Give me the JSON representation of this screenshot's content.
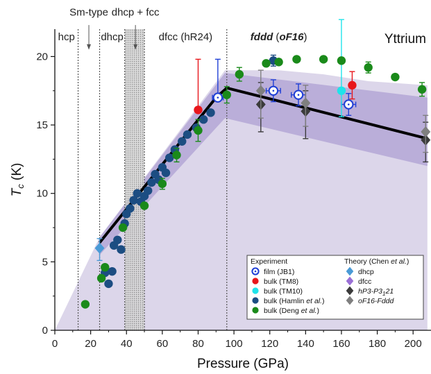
{
  "chart_data": {
    "type": "scatter",
    "title": "Yttrium",
    "xlabel": "Pressure (GPa)",
    "ylabel": "T_c (K)",
    "xlim": [
      0,
      210
    ],
    "ylim": [
      0,
      22
    ],
    "xticks": [
      0,
      20,
      40,
      60,
      80,
      100,
      120,
      140,
      160,
      180,
      200
    ],
    "yticks": [
      0,
      5,
      10,
      15,
      20
    ],
    "colors": {
      "film": "#1f3fd6",
      "tm8": "#e8161b",
      "tm10": "#1fe3ea",
      "hamlin": "#1c4d82",
      "deng": "#1a8a1a",
      "th_dhcp": "#4a9ad6",
      "th_dfcc": "#9a6fd6",
      "th_hp3": "#3b3b3b",
      "th_of16": "#7f7f7f",
      "band_outer": "#dcd6ea",
      "band_inner": "#b4a7d6",
      "shade": "#c9c9c9"
    },
    "phase_boundaries": [
      13,
      25,
      39,
      50,
      96
    ],
    "phase_labels": [
      {
        "text": "hcp",
        "x": 6.5,
        "y": 21.2
      },
      {
        "text": "dhcp",
        "x": 32,
        "y": 21.2
      },
      {
        "text": "dfcc (hR24)",
        "x": 73,
        "y": 21.2
      },
      {
        "text": "Sm-type",
        "x": 19,
        "y": 23.0
      },
      {
        "text": "dhcp + fcc",
        "x": 45,
        "y": 23.0
      }
    ],
    "phase_fddd": {
      "bold": "fddd",
      "open": "(",
      "ital": "oF16",
      "close": ")",
      "x": 125,
      "y": 21.2
    },
    "mixed_region": [
      39,
      50
    ],
    "band_outer": [
      [
        0,
        0
      ],
      [
        25,
        6.8
      ],
      [
        95,
        19.0
      ],
      [
        125,
        19.0
      ],
      [
        150,
        18.7
      ],
      [
        175,
        18.2
      ],
      [
        208,
        17.9
      ],
      [
        208,
        0
      ]
    ],
    "band_inner": [
      [
        25,
        5.5
      ],
      [
        25,
        6.8
      ],
      [
        95,
        18.8
      ],
      [
        208,
        17.0
      ],
      [
        208,
        12.0
      ],
      [
        95,
        15.5
      ],
      [
        25,
        5.5
      ]
    ],
    "fit_line": [
      [
        25,
        6.4
      ],
      [
        90,
        17.0
      ],
      [
        96,
        17.7
      ],
      [
        208,
        14.0
      ]
    ],
    "series": [
      {
        "name": "film (JB1)",
        "marker": "ring",
        "color": "#1f3fd6",
        "points": [
          [
            91,
            17.0,
            3.0,
            2.8,
            0.0
          ],
          [
            122,
            17.5,
            4.0,
            0.8,
            0.8
          ],
          [
            136,
            17.2,
            4.0,
            0.8,
            0.8
          ],
          [
            164,
            16.5,
            4.0,
            0.8,
            0.8
          ]
        ]
      },
      {
        "name": "bulk (TM8)",
        "marker": "circle",
        "color": "#e8161b",
        "points": [
          [
            80,
            16.1,
            0,
            3.7,
            0.0
          ],
          [
            166,
            17.9,
            0,
            1.0,
            1.0
          ]
        ]
      },
      {
        "name": "bulk (TM10)",
        "marker": "circle",
        "color": "#1fe3ea",
        "points": [
          [
            160,
            17.5,
            0,
            5.2,
            1.9
          ]
        ]
      },
      {
        "name": "bulk (Hamlin et al.)",
        "marker": "circle",
        "color": "#1c4d82",
        "points": [
          [
            28,
            4.2,
            0,
            0,
            0
          ],
          [
            30,
            3.4,
            0,
            0,
            0
          ],
          [
            32,
            4.3,
            0,
            0,
            0
          ],
          [
            33,
            6.2,
            0,
            0,
            0
          ],
          [
            35,
            6.6,
            0,
            0,
            0
          ],
          [
            37,
            5.9,
            0,
            0,
            0
          ],
          [
            39,
            7.8,
            0,
            0,
            0
          ],
          [
            40,
            8.5,
            0,
            0,
            0
          ],
          [
            42,
            8.9,
            0,
            0,
            0
          ],
          [
            44,
            9.5,
            0,
            0,
            0
          ],
          [
            46,
            10.0,
            0,
            0,
            0
          ],
          [
            48,
            9.4,
            0,
            0,
            0
          ],
          [
            50,
            9.8,
            0,
            0,
            0
          ],
          [
            52,
            10.2,
            0,
            0,
            0
          ],
          [
            54,
            10.8,
            0,
            0,
            0
          ],
          [
            56,
            11.4,
            0,
            0,
            0
          ],
          [
            58,
            11.0,
            0,
            0,
            0
          ],
          [
            60,
            11.9,
            0,
            0,
            0
          ],
          [
            62,
            11.5,
            0,
            0,
            0
          ],
          [
            64,
            12.6,
            0,
            0,
            0
          ],
          [
            67,
            13.2,
            0,
            0,
            0
          ],
          [
            71,
            13.8,
            0,
            0,
            0
          ],
          [
            74,
            14.3,
            0,
            0,
            0
          ],
          [
            79,
            14.8,
            0,
            0,
            0
          ],
          [
            83,
            15.4,
            0,
            0,
            0
          ],
          [
            87,
            15.9,
            0,
            0,
            0
          ],
          [
            122,
            19.7,
            0,
            0.4,
            0.4
          ]
        ]
      },
      {
        "name": "bulk (Deng et al.)",
        "marker": "circle",
        "color": "#1a8a1a",
        "points": [
          [
            17,
            1.9,
            0,
            0,
            0
          ],
          [
            26,
            3.8,
            0,
            0,
            0
          ],
          [
            28,
            4.6,
            0,
            0,
            0
          ],
          [
            38,
            7.5,
            0,
            0,
            0
          ],
          [
            50,
            9.1,
            0,
            0,
            0
          ],
          [
            60,
            10.7,
            0,
            0.4,
            0.4
          ],
          [
            68,
            12.8,
            0,
            0.5,
            0.5
          ],
          [
            80,
            14.6,
            0,
            0.8,
            0.8
          ],
          [
            96,
            17.2,
            0,
            0.6,
            0.6
          ],
          [
            103,
            18.7,
            0,
            0.5,
            0.5
          ],
          [
            118,
            19.5,
            0,
            0,
            0
          ],
          [
            125,
            19.6,
            0,
            0,
            0
          ],
          [
            135,
            19.8,
            0,
            0,
            0
          ],
          [
            150,
            19.8,
            0,
            0,
            0
          ],
          [
            160,
            19.7,
            0,
            0,
            0
          ],
          [
            175,
            19.2,
            0,
            0.4,
            0.4
          ],
          [
            190,
            18.5,
            0,
            0,
            0
          ],
          [
            205,
            17.6,
            0,
            0.5,
            0.5
          ]
        ]
      },
      {
        "name": "dhcp",
        "marker": "diamond",
        "color": "#4a9ad6",
        "points": [
          [
            25,
            6.0,
            0,
            0.7,
            0.9
          ]
        ]
      },
      {
        "name": "dfcc",
        "marker": "diamond",
        "color": "#9a6fd6",
        "points": []
      },
      {
        "name": "hP3-P3₁1 21",
        "marker": "diamond",
        "color": "#3b3b3b",
        "points": [
          [
            115,
            16.5,
            0,
            1.6,
            2.0
          ],
          [
            140,
            16.0,
            0,
            1.5,
            2.0
          ],
          [
            207,
            13.9,
            0,
            1.3,
            1.6
          ]
        ]
      },
      {
        "name": "oF16-Fddd",
        "marker": "diamond",
        "color": "#7f7f7f",
        "points": [
          [
            115,
            17.5,
            0,
            1.5,
            2.0
          ],
          [
            140,
            16.6,
            0,
            1.3,
            1.7
          ],
          [
            207,
            14.5,
            0,
            1.2,
            1.5
          ]
        ]
      }
    ],
    "legend": {
      "experiment_title": "Experiment",
      "theory_title_pre": "Theory (Chen ",
      "theory_title_ital": "et al.",
      "theory_title_post": ")",
      "experiment": [
        {
          "label": "film (JB1)",
          "marker": "ring",
          "color": "#1f3fd6"
        },
        {
          "label": "bulk (TM8)",
          "marker": "circle",
          "color": "#e8161b"
        },
        {
          "label": "bulk (TM10)",
          "marker": "circle",
          "color": "#1fe3ea"
        },
        {
          "label": "bulk (Hamlin ",
          "ital": "et al.",
          "post": ")",
          "marker": "circle",
          "color": "#1c4d82"
        },
        {
          "label": "bulk (Deng ",
          "ital": "et al.",
          "post": ")",
          "marker": "circle",
          "color": "#1a8a1a"
        }
      ],
      "theory": [
        {
          "label": "dhcp",
          "marker": "diamond",
          "color": "#4a9ad6"
        },
        {
          "label": "dfcc",
          "marker": "diamond",
          "color": "#9a6fd6"
        },
        {
          "label": "hP3-P3",
          "sub": "1",
          "post": "21",
          "italic": true,
          "marker": "diamond",
          "color": "#3b3b3b"
        },
        {
          "label": "oF16-Fddd",
          "italic": true,
          "marker": "diamond",
          "color": "#7f7f7f"
        }
      ]
    }
  }
}
